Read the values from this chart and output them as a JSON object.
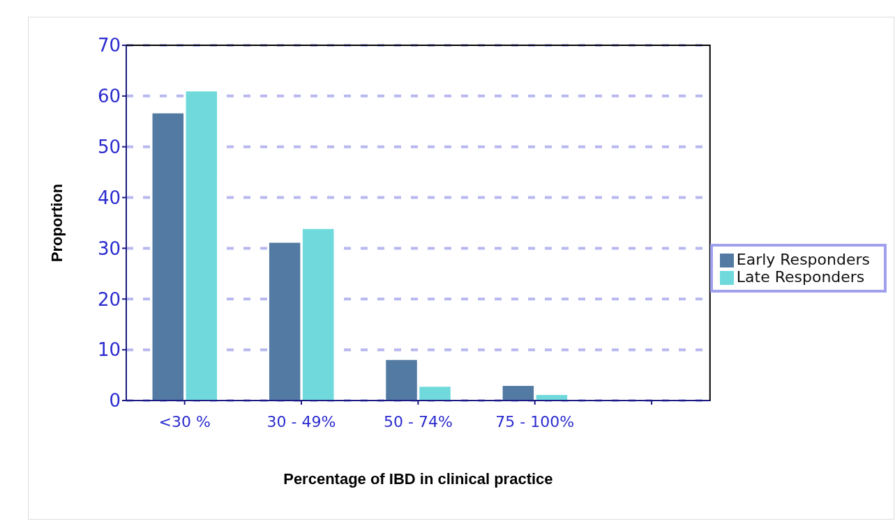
{
  "chart_data": {
    "type": "bar",
    "xlabel": "Percentage of IBD in clinical practice",
    "ylabel": "Proportion",
    "categories": [
      "<30 %",
      "30 - 49%",
      "50 - 74%",
      "75 - 100%",
      null
    ],
    "series": [
      {
        "name": "Early Responders",
        "color": "#527aa3",
        "values": [
          56.7,
          31.2,
          8.1,
          3.0,
          null
        ]
      },
      {
        "name": "Late Responders",
        "color": "#6fd9dc",
        "values": [
          61,
          33.9,
          2.8,
          1.2,
          null
        ]
      }
    ],
    "ylim": [
      0,
      70
    ],
    "yticks": [
      0,
      10,
      20,
      30,
      40,
      50,
      60,
      70
    ],
    "grid": "y",
    "legend": "right"
  }
}
